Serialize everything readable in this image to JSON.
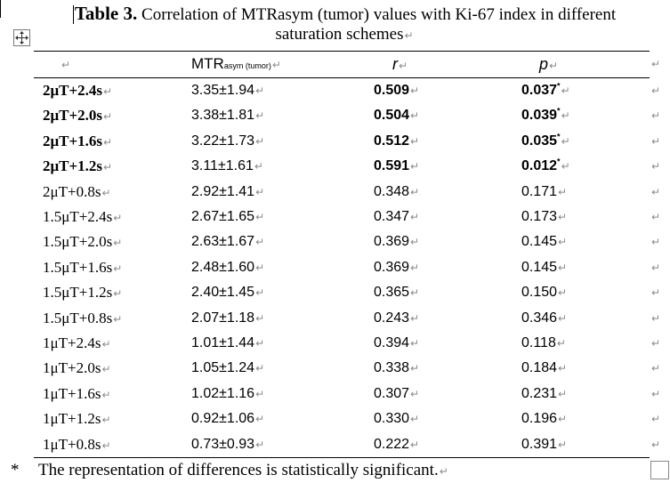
{
  "caption": {
    "label": "Table 3.",
    "line1": "Correlation of MTRasym (tumor) values with Ki-67 index in different",
    "line2": "saturation schemes"
  },
  "marks": {
    "paragraph": "↵"
  },
  "header": {
    "col0": "",
    "col1_main": "MTR",
    "col1_sub": "asym  (tumor)",
    "col2": "r",
    "col3": "p"
  },
  "rows": [
    {
      "scheme": "2μT+2.4s",
      "mtr": "3.35±1.94",
      "r": "0.509",
      "p": "0.037",
      "sig": "*"
    },
    {
      "scheme": "2μT+2.0s",
      "mtr": "3.38±1.81",
      "r": "0.504",
      "p": "0.039",
      "sig": "*"
    },
    {
      "scheme": "2μT+1.6s",
      "mtr": "3.22±1.73",
      "r": "0.512",
      "p": "0.035",
      "sig": "*"
    },
    {
      "scheme": "2μT+1.2s",
      "mtr": "3.11±1.61",
      "r": "0.591",
      "p": "0.012",
      "sig": "*"
    },
    {
      "scheme": "2μT+0.8s",
      "mtr": "2.92±1.41",
      "r": "0.348",
      "p": "0.171",
      "sig": ""
    },
    {
      "scheme": "1.5μT+2.4s",
      "mtr": "2.67±1.65",
      "r": "0.347",
      "p": "0.173",
      "sig": ""
    },
    {
      "scheme": "1.5μT+2.0s",
      "mtr": "2.63±1.67",
      "r": "0.369",
      "p": "0.145",
      "sig": ""
    },
    {
      "scheme": "1.5μT+1.6s",
      "mtr": "2.48±1.60",
      "r": "0.369",
      "p": "0.145",
      "sig": ""
    },
    {
      "scheme": "1.5μT+1.2s",
      "mtr": "2.40±1.45",
      "r": "0.365",
      "p": "0.150",
      "sig": ""
    },
    {
      "scheme": "1.5μT+0.8s",
      "mtr": "2.07±1.18",
      "r": "0.243",
      "p": "0.346",
      "sig": ""
    },
    {
      "scheme": "1μT+2.4s",
      "mtr": "1.01±1.44",
      "r": "0.394",
      "p": "0.118",
      "sig": ""
    },
    {
      "scheme": "1μT+2.0s",
      "mtr": "1.05±1.24",
      "r": "0.338",
      "p": "0.184",
      "sig": ""
    },
    {
      "scheme": "1μT+1.6s",
      "mtr": "1.02±1.16",
      "r": "0.307",
      "p": "0.231",
      "sig": ""
    },
    {
      "scheme": "1μT+1.2s",
      "mtr": "0.92±1.06",
      "r": "0.330",
      "p": "0.196",
      "sig": ""
    },
    {
      "scheme": "1μT+0.8s",
      "mtr": "0.73±0.93",
      "r": "0.222",
      "p": "0.391",
      "sig": ""
    }
  ],
  "footnote": {
    "symbol": "*",
    "text": "The representation of differences is statistically significant."
  }
}
